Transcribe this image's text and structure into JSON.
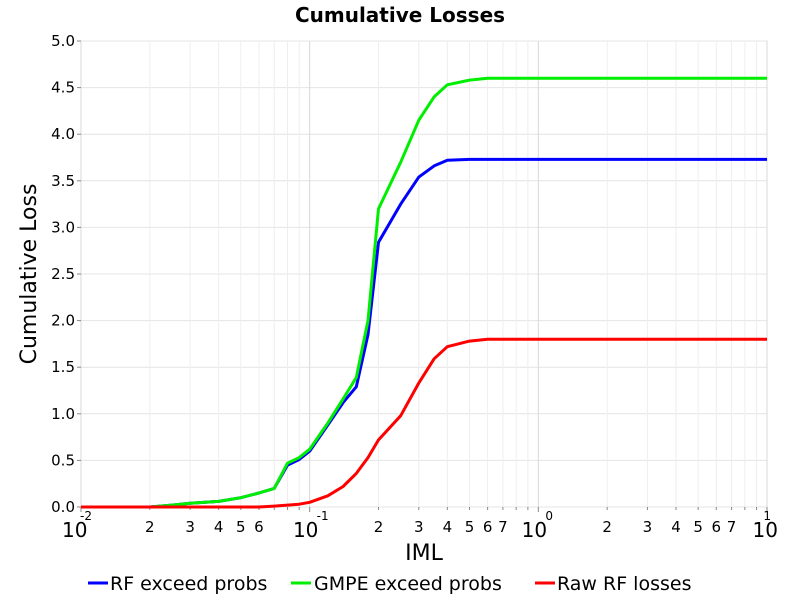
{
  "chart_data": {
    "type": "line",
    "title": "Cumulative Losses",
    "xlabel": "IML",
    "ylabel": "Cumulative Loss",
    "xscale": "log",
    "xlim": [
      0.01,
      10
    ],
    "ylim": [
      0,
      5
    ],
    "grid": true,
    "legend_position": "bottom",
    "y_ticks": [
      "0.0",
      "0.5",
      "1.0",
      "1.5",
      "2.0",
      "2.5",
      "3.0",
      "3.5",
      "4.0",
      "4.5",
      "5.0"
    ],
    "x_major_ticks": [
      {
        "base": "10",
        "exp": "-2"
      },
      {
        "base": "10",
        "exp": "-1"
      },
      {
        "base": "10",
        "exp": "0"
      },
      {
        "base": "10",
        "exp": "1"
      }
    ],
    "x_minor_labels": [
      "2",
      "3",
      "4",
      "5",
      "6",
      "2",
      "3",
      "4",
      "5",
      "6",
      "7",
      "2",
      "3",
      "4",
      "5",
      "6",
      "7"
    ],
    "x": [
      0.01,
      0.02,
      0.025,
      0.03,
      0.04,
      0.05,
      0.06,
      0.07,
      0.08,
      0.09,
      0.1,
      0.12,
      0.14,
      0.16,
      0.18,
      0.2,
      0.25,
      0.3,
      0.35,
      0.4,
      0.5,
      0.6,
      0.7,
      0.8,
      1.0,
      1.2,
      1.5,
      2,
      3,
      5,
      10
    ],
    "series": [
      {
        "name": "RF exceed probs",
        "color": "#0000ff",
        "values": [
          0.0,
          0.0,
          0.02,
          0.04,
          0.06,
          0.1,
          0.15,
          0.2,
          0.45,
          0.51,
          0.6,
          0.88,
          1.12,
          1.29,
          1.85,
          2.84,
          3.25,
          3.54,
          3.66,
          3.72,
          3.73,
          3.73,
          3.73,
          3.73,
          3.73,
          3.73,
          3.73,
          3.73,
          3.73,
          3.73,
          3.73
        ]
      },
      {
        "name": "GMPE exceed probs",
        "color": "#00ee00",
        "values": [
          0.0,
          0.0,
          0.02,
          0.04,
          0.06,
          0.1,
          0.15,
          0.2,
          0.47,
          0.53,
          0.62,
          0.9,
          1.16,
          1.39,
          2.0,
          3.2,
          3.7,
          4.15,
          4.4,
          4.53,
          4.58,
          4.6,
          4.6,
          4.6,
          4.6,
          4.6,
          4.6,
          4.6,
          4.6,
          4.6,
          4.6
        ]
      },
      {
        "name": "Raw RF losses",
        "color": "#ff0000",
        "values": [
          0.0,
          0.0,
          0.0,
          0.0,
          0.0,
          0.0,
          0.0,
          0.01,
          0.02,
          0.03,
          0.05,
          0.12,
          0.22,
          0.36,
          0.53,
          0.72,
          0.98,
          1.33,
          1.59,
          1.72,
          1.78,
          1.8,
          1.8,
          1.8,
          1.8,
          1.8,
          1.8,
          1.8,
          1.8,
          1.8,
          1.8
        ]
      }
    ]
  }
}
